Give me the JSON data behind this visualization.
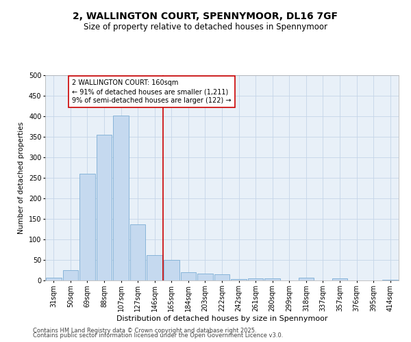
{
  "title1": "2, WALLINGTON COURT, SPENNYMOOR, DL16 7GF",
  "title2": "Size of property relative to detached houses in Spennymoor",
  "xlabel": "Distribution of detached houses by size in Spennymoor",
  "ylabel": "Number of detached properties",
  "categories": [
    "31sqm",
    "50sqm",
    "69sqm",
    "88sqm",
    "107sqm",
    "127sqm",
    "146sqm",
    "165sqm",
    "184sqm",
    "203sqm",
    "222sqm",
    "242sqm",
    "261sqm",
    "280sqm",
    "299sqm",
    "318sqm",
    "337sqm",
    "357sqm",
    "376sqm",
    "395sqm",
    "414sqm"
  ],
  "values": [
    7,
    25,
    260,
    355,
    402,
    137,
    62,
    50,
    20,
    17,
    15,
    3,
    5,
    5,
    0,
    7,
    0,
    5,
    0,
    0,
    2
  ],
  "bar_color": "#c5d9ef",
  "bar_edge_color": "#7aadd4",
  "property_line_x": 7,
  "property_line_color": "#cc0000",
  "annotation_line1": "2 WALLINGTON COURT: 160sqm",
  "annotation_line2": "← 91% of detached houses are smaller (1,211)",
  "annotation_line3": "9% of semi-detached houses are larger (122) →",
  "annotation_box_color": "#ffffff",
  "annotation_border_color": "#cc0000",
  "ylim": [
    0,
    500
  ],
  "yticks": [
    0,
    50,
    100,
    150,
    200,
    250,
    300,
    350,
    400,
    450,
    500
  ],
  "grid_color": "#c5d5e8",
  "background_color": "#e8f0f8",
  "footer_line1": "Contains HM Land Registry data © Crown copyright and database right 2025.",
  "footer_line2": "Contains public sector information licensed under the Open Government Licence v3.0.",
  "title1_fontsize": 10,
  "title2_fontsize": 8.5,
  "xlabel_fontsize": 8,
  "ylabel_fontsize": 7.5,
  "tick_fontsize": 7,
  "annotation_fontsize": 7,
  "footer_fontsize": 6
}
